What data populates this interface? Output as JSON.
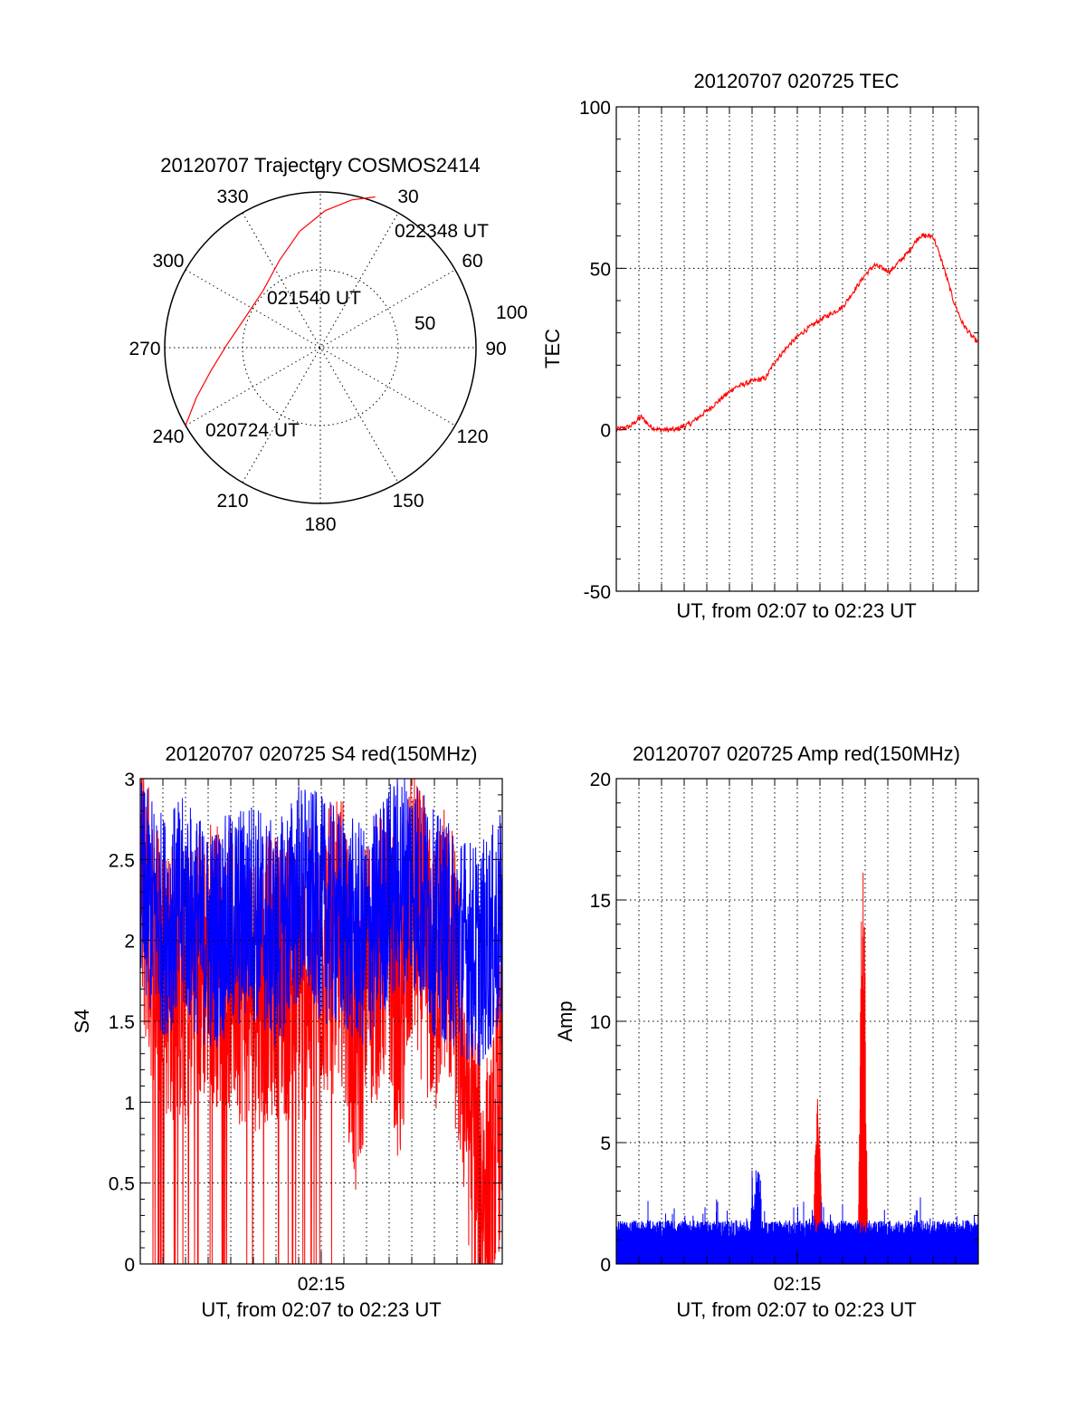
{
  "colors": {
    "red": "#ff0000",
    "blue": "#0000ff",
    "axis": "#000000"
  },
  "chart_data": [
    {
      "id": "polar",
      "type": "polar",
      "title": "20120707 Trajectory COSMOS2414",
      "azimuth_labels": [
        "0",
        "30",
        "60",
        "90",
        "120",
        "150",
        "180",
        "210",
        "240",
        "270",
        "300",
        "330"
      ],
      "radial_labels": [
        "50",
        "100"
      ],
      "track": {
        "color": "#ff0000",
        "start_label": "020724 UT",
        "mid_label": "021540 UT",
        "end_label": "022348 UT",
        "points": [
          {
            "az": 240,
            "r": 100
          },
          {
            "az": 248,
            "r": 86
          },
          {
            "az": 258,
            "r": 72
          },
          {
            "az": 272,
            "r": 60
          },
          {
            "az": 292,
            "r": 52
          },
          {
            "az": 315,
            "r": 52
          },
          {
            "az": 335,
            "r": 62
          },
          {
            "az": 350,
            "r": 76
          },
          {
            "az": 2,
            "r": 88
          },
          {
            "az": 12,
            "r": 97
          },
          {
            "az": 20,
            "r": 103
          }
        ]
      }
    },
    {
      "id": "tec",
      "type": "line",
      "title": "20120707 020725 TEC",
      "xlabel": "UT, from 02:07 to 02:23 UT",
      "ylabel": "TEC",
      "ylim": [
        -50,
        100
      ],
      "yticks": [
        "-50",
        "0",
        "50",
        "100"
      ],
      "xlim": [
        0,
        16
      ],
      "grid": true,
      "series": [
        {
          "color": "#ff0000",
          "x": [
            0,
            0.6,
            1.1,
            1.5,
            1.9,
            2.6,
            3.3,
            4.2,
            5.2,
            6.0,
            6.6,
            7.0,
            7.6,
            8.2,
            9.0,
            10.0,
            11.0,
            11.4,
            12.1,
            12.9,
            13.4,
            14.0,
            14.4,
            14.9,
            15.3,
            15.7,
            16.0
          ],
          "y": [
            0,
            1,
            4,
            1,
            0,
            0,
            2,
            7,
            13,
            15,
            16,
            21,
            26,
            30,
            34,
            38,
            48,
            51,
            49,
            55,
            60,
            60,
            52,
            40,
            33,
            29,
            27
          ]
        }
      ]
    },
    {
      "id": "s4",
      "type": "line",
      "title": "20120707 020725 S4 red(150MHz)",
      "xlabel": "UT, from 02:07 to 02:23 UT",
      "ylabel": "S4",
      "ylim": [
        0,
        3
      ],
      "yticks": [
        "0",
        "0.5",
        "1",
        "1.5",
        "2",
        "2.5",
        "3"
      ],
      "xlim": [
        0,
        16
      ],
      "xticks": [
        {
          "value": 8,
          "label": "02:15"
        }
      ],
      "grid": true,
      "series": [
        {
          "color": "#ff0000",
          "x": [
            0,
            0.5,
            1.0,
            2.0,
            3.0,
            4.0,
            5.0,
            6.0,
            7.0,
            8.0,
            9.0,
            9.5,
            10.0,
            11.0,
            11.5,
            12.0,
            12.5,
            13.0,
            13.5,
            14.0,
            14.5,
            15.0,
            15.5,
            16.0
          ],
          "y": [
            2.4,
            2.0,
            1.8,
            1.7,
            1.9,
            1.8,
            1.7,
            1.8,
            1.7,
            1.9,
            2.0,
            1.2,
            1.8,
            2.0,
            1.4,
            2.2,
            2.0,
            1.7,
            2.1,
            1.6,
            1.0,
            0.5,
            0.4,
            1.2
          ],
          "noise": 0.9,
          "drop_to_zero_until": 8.5
        },
        {
          "color": "#0000ff",
          "x": [
            0,
            1.0,
            2.0,
            3.0,
            4.0,
            5.0,
            6.0,
            7.0,
            8.0,
            9.0,
            10.0,
            11.0,
            12.0,
            13.0,
            14.0,
            15.0,
            16.0
          ],
          "y": [
            2.3,
            2.1,
            2.2,
            2.0,
            2.1,
            2.2,
            2.0,
            2.3,
            2.2,
            2.1,
            2.0,
            2.3,
            2.4,
            2.1,
            2.0,
            1.9,
            2.1
          ],
          "noise": 0.7
        }
      ]
    },
    {
      "id": "amp",
      "type": "line",
      "title": "20120707 020725 Amp red(150MHz)",
      "xlabel": "UT, from 02:07 to 02:23 UT",
      "ylabel": "Amp",
      "ylim": [
        0,
        20
      ],
      "yticks": [
        "0",
        "5",
        "10",
        "15",
        "20"
      ],
      "xlim": [
        0,
        16
      ],
      "xticks": [
        {
          "value": 8,
          "label": "02:15"
        }
      ],
      "grid": true,
      "series": [
        {
          "color": "#ff0000",
          "bursts": [
            {
              "x0": 8.7,
              "x1": 9.1,
              "peak": 6.8
            },
            {
              "x0": 10.7,
              "x1": 11.1,
              "peak": 16.4
            }
          ]
        },
        {
          "color": "#0000ff",
          "baseline": 1.0,
          "noise": 0.8,
          "bursts": [
            {
              "x0": 6.0,
              "x1": 6.4,
              "peak": 3.9
            }
          ]
        }
      ]
    }
  ]
}
